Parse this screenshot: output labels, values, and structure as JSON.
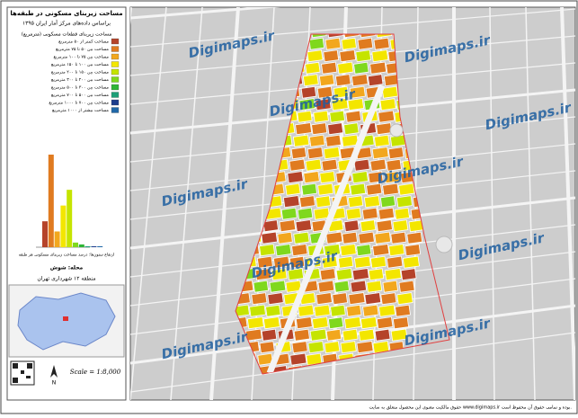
{
  "header": {
    "title": "مساحت زیربنای مسکونی در طبقه‌ها",
    "subtitle": "براساس داده‌های مرکز آمار ایران ۱۳۹۵"
  },
  "legend": {
    "title": "مساحت زیربنای قطعات مسکونی (مترمربع)",
    "items": [
      {
        "label": "مساحت کمتر از ۵۰ مترمربع",
        "color": "#b5432a"
      },
      {
        "label": "مساحت بین ۵۰ تا ۷۵ مترمربع",
        "color": "#e07b20"
      },
      {
        "label": "مساحت بین ۷۵ تا ۱۰۰ مترمربع",
        "color": "#f2a71e"
      },
      {
        "label": "مساحت بین ۱۰۰ تا ۱۵۰ مترمربع",
        "color": "#f3e600"
      },
      {
        "label": "مساحت بین ۱۵۰ تا ۲۰۰ مترمربع",
        "color": "#c5e400"
      },
      {
        "label": "مساحت بین ۲۰۰ تا ۳۰۰ مترمربع",
        "color": "#7fd81e"
      },
      {
        "label": "مساحت بین ۳۰۰ تا ۵۰۰ مترمربع",
        "color": "#2fb536"
      },
      {
        "label": "مساحت بین ۵۰۰ تا ۷۰۰ مترمربع",
        "color": "#1d9f78"
      },
      {
        "label": "مساحت بین ۷۰۰ تا ۱۰۰۰ مترمربع",
        "color": "#1c3d8c"
      },
      {
        "label": "مساحت بیشتر از ۱۰۰۰ مترمربع",
        "color": "#2068a8"
      }
    ]
  },
  "histogram": {
    "caption": "ارتفاع ستون‌ها: درصد مساحت زیربنای مسکونی هر طبقه",
    "values": [
      28,
      100,
      17,
      45,
      62,
      5,
      3,
      1,
      1,
      1
    ]
  },
  "locator": {
    "title": "محله: شوش",
    "subtitle": "منطقه ۱۲ شهرداری تهران"
  },
  "scale": "Scale = 1:8,000",
  "north": "N",
  "watermark": "Digimaps.ir",
  "footer": "حقوق مالکیت معنوی این محصول متعلق به سایت www.digimaps.ir بوده و تمامی حقوق آن محفوظ است."
}
